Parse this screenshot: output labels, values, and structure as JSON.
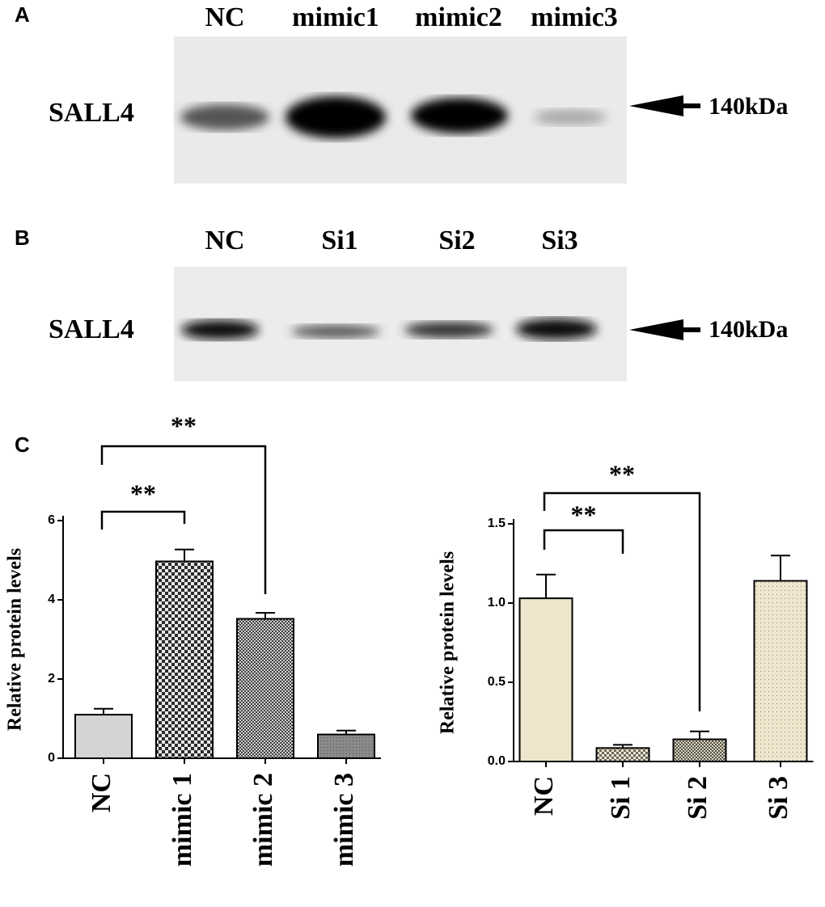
{
  "panels": {
    "a": {
      "label": "A",
      "lanes": [
        "NC",
        "mimic1",
        "mimic2",
        "mimic3"
      ],
      "protein": "SALL4",
      "size": "140kDa"
    },
    "b": {
      "label": "B",
      "lanes": [
        "NC",
        "Si1",
        "Si2",
        "Si3"
      ],
      "protein": "SALL4",
      "size": "140kDa"
    },
    "c": {
      "label": "C"
    }
  },
  "chart_data": [
    {
      "type": "bar",
      "ylabel": "Relative protein levels",
      "categories": [
        "NC",
        "mimic 1",
        "mimic 2",
        "mimic 3"
      ],
      "values": [
        1.1,
        4.97,
        3.52,
        0.6
      ],
      "errors": [
        0.15,
        0.3,
        0.15,
        0.1
      ],
      "colors": [
        "#d4d4d4",
        "#666666",
        "#888888",
        "#8a8a8a"
      ],
      "ylim": [
        0,
        6
      ],
      "yticks": [
        0,
        2,
        4,
        6
      ],
      "annotations": [
        "**",
        "**"
      ]
    },
    {
      "type": "bar",
      "ylabel": "Relative protein levels",
      "categories": [
        "NC",
        "Si 1",
        "Si 2",
        "Si 3"
      ],
      "values": [
        1.03,
        0.085,
        0.14,
        1.14
      ],
      "errors": [
        0.15,
        0.02,
        0.05,
        0.16
      ],
      "colors": [
        "#ede6cc",
        "#e0d8b8",
        "#b8b39c",
        "#ede6cc"
      ],
      "ylim": [
        0,
        1.5
      ],
      "yticks": [
        {
          "value": 0,
          "label": "0.0"
        },
        0.5,
        {
          "value": 1,
          "label": "1.0"
        },
        1.5
      ],
      "annotations": [
        "**",
        "**"
      ]
    }
  ]
}
